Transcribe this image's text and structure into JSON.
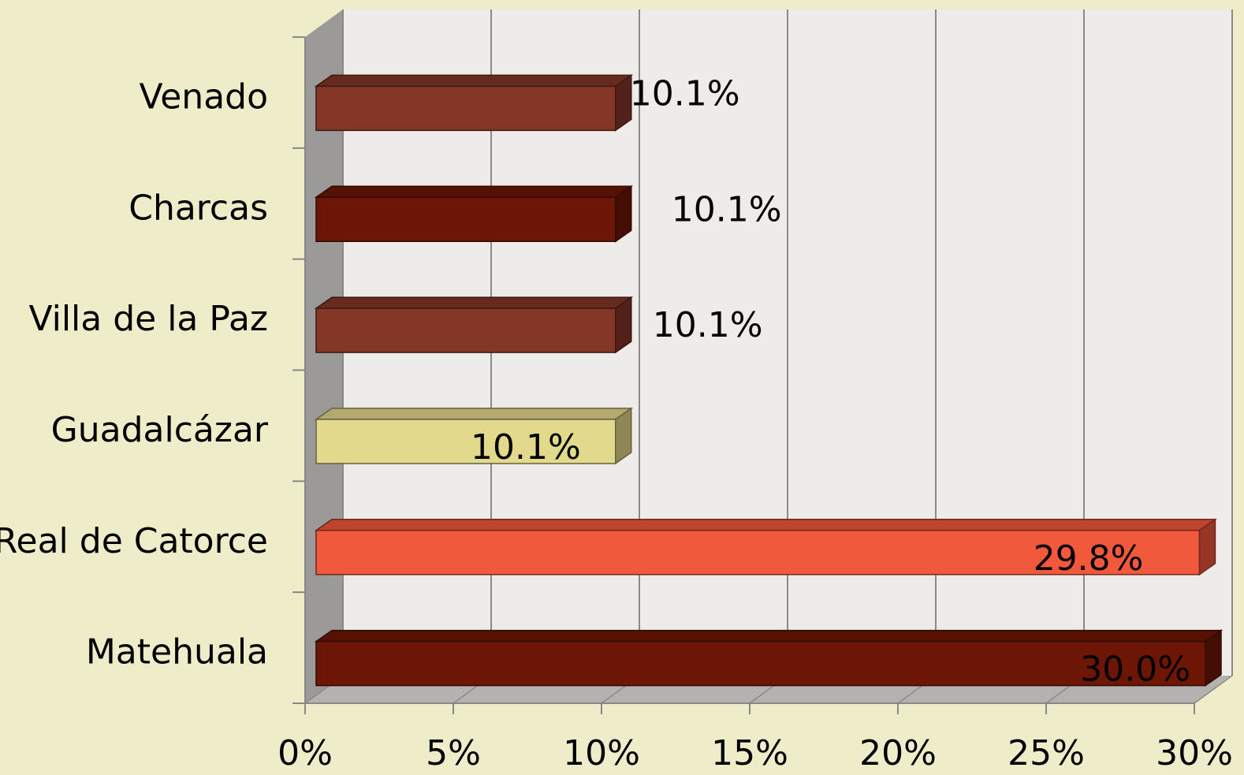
{
  "chart_data": {
    "type": "bar",
    "orientation": "horizontal",
    "style": "3d",
    "categories": [
      "Venado",
      "Charcas",
      "Villa de la Paz",
      "Guadalcázar",
      "Real de Catorce",
      "Matehuala"
    ],
    "values": [
      10.1,
      10.1,
      10.1,
      10.1,
      29.8,
      30.0
    ],
    "value_labels": [
      "10.1%",
      "10.1%",
      "10.1%",
      "10.1%",
      "29.8%",
      "30.0%"
    ],
    "colors": [
      "#843627",
      "#6e1606",
      "#843627",
      "#e3d98c",
      "#f2583b",
      "#6e1606"
    ],
    "xlim": [
      0,
      30
    ],
    "xticks": [
      {
        "value": 0,
        "label": "0%"
      },
      {
        "value": 5,
        "label": "5%"
      },
      {
        "value": 10,
        "label": "10%"
      },
      {
        "value": 15,
        "label": "15%"
      },
      {
        "value": 20,
        "label": "20%"
      },
      {
        "value": 25,
        "label": "25%"
      },
      {
        "value": 30,
        "label": "30%"
      }
    ],
    "grid": true
  }
}
